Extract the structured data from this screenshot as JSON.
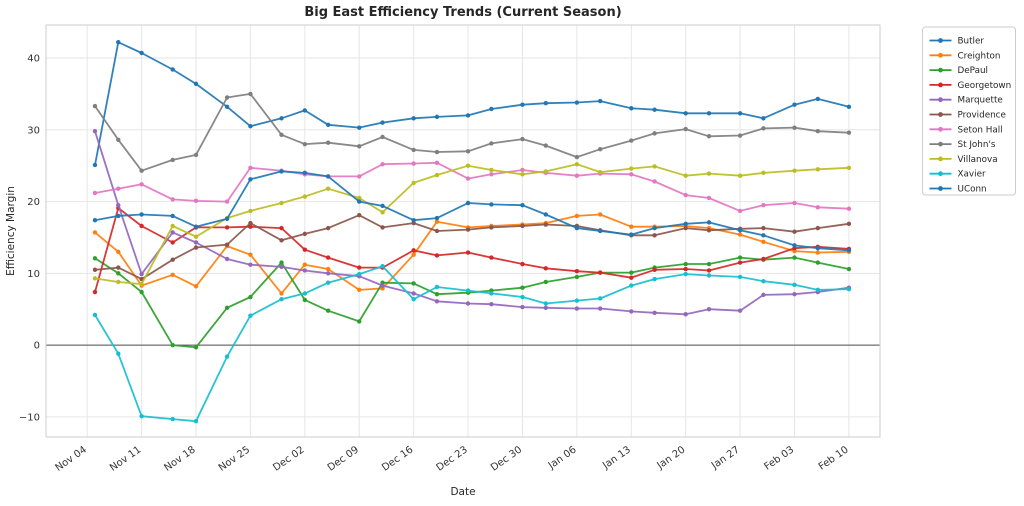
{
  "chart_data": {
    "type": "line",
    "title": "Big East Efficiency Trends (Current Season)",
    "xlabel": "Date",
    "ylabel": "Efficiency Margin",
    "grid": true,
    "legend_position": "outside-top-right",
    "zero_line_y": 0,
    "x_tick_labels": [
      "Nov 04",
      "Nov 11",
      "Nov 18",
      "Nov 25",
      "Dec 02",
      "Dec 09",
      "Dec 16",
      "Dec 23",
      "Dec 30",
      "Jan 06",
      "Jan 13",
      "Jan 20",
      "Jan 27",
      "Feb 03",
      "Feb 10"
    ],
    "x_tick_days": [
      0,
      7,
      14,
      21,
      28,
      35,
      42,
      49,
      56,
      63,
      70,
      77,
      84,
      91,
      98
    ],
    "y_ticks": [
      -10,
      0,
      10,
      20,
      30,
      40
    ],
    "y_tick_labels": [
      "−10",
      "0",
      "10",
      "20",
      "30",
      "40"
    ],
    "xlim_days": [
      -5.3,
      102
    ],
    "ylim": [
      -12.8,
      44.6
    ],
    "x_dates": [
      "Nov 05",
      "Nov 08",
      "Nov 11",
      "Nov 15",
      "Nov 18",
      "Nov 22",
      "Nov 25",
      "Nov 29",
      "Dec 02",
      "Dec 05",
      "Dec 09",
      "Dec 12",
      "Dec 16",
      "Dec 19",
      "Dec 23",
      "Dec 26",
      "Dec 30",
      "Jan 02",
      "Jan 06",
      "Jan 09",
      "Jan 13",
      "Jan 16",
      "Jan 20",
      "Jan 23",
      "Jan 27",
      "Jan 30",
      "Feb 03",
      "Feb 06",
      "Feb 10"
    ],
    "x_days": [
      1,
      4,
      7,
      11,
      14,
      18,
      21,
      25,
      28,
      31,
      35,
      38,
      42,
      45,
      49,
      52,
      56,
      59,
      63,
      66,
      70,
      73,
      77,
      80,
      84,
      87,
      91,
      94,
      98
    ],
    "series": [
      {
        "name": "Butler",
        "color": "#1f77b4",
        "values": [
          25.1,
          42.2,
          40.7,
          38.4,
          36.4,
          33.2,
          30.5,
          31.6,
          32.7,
          30.7,
          30.3,
          31.0,
          31.6,
          31.8,
          32.0,
          32.9,
          33.5,
          33.7,
          33.8,
          34.0,
          33.0,
          32.8,
          32.3,
          32.3,
          32.3,
          31.6,
          33.5,
          34.3,
          33.2
        ]
      },
      {
        "name": "Creighton",
        "color": "#ff7f0e",
        "values": [
          15.7,
          13.0,
          8.3,
          9.8,
          8.2,
          13.8,
          12.6,
          7.2,
          11.2,
          10.6,
          7.7,
          7.9,
          12.6,
          17.2,
          16.4,
          16.6,
          16.8,
          17.0,
          18.0,
          18.2,
          16.5,
          16.5,
          16.6,
          16.3,
          15.4,
          14.4,
          13.1,
          12.9,
          13.0
        ]
      },
      {
        "name": "DePaul",
        "color": "#2ca02c",
        "values": [
          12.1,
          10.0,
          7.4,
          0.0,
          -0.3,
          5.2,
          6.7,
          11.5,
          6.3,
          4.8,
          3.3,
          8.7,
          8.6,
          7.1,
          7.3,
          7.6,
          8.0,
          8.8,
          9.5,
          10.1,
          10.1,
          10.8,
          11.3,
          11.3,
          12.2,
          11.9,
          12.2,
          11.5,
          10.6
        ]
      },
      {
        "name": "Georgetown",
        "color": "#d62728",
        "values": [
          7.4,
          19.1,
          16.6,
          14.3,
          16.4,
          16.4,
          16.5,
          16.3,
          13.3,
          12.2,
          10.8,
          10.8,
          13.2,
          12.5,
          12.9,
          12.2,
          11.3,
          10.7,
          10.3,
          10.1,
          9.4,
          10.5,
          10.6,
          10.4,
          11.5,
          12.0,
          13.5,
          13.7,
          13.4
        ]
      },
      {
        "name": "Marquette",
        "color": "#9467bd",
        "values": [
          29.8,
          19.5,
          9.9,
          15.7,
          14.3,
          12.0,
          11.2,
          10.9,
          10.4,
          10.0,
          9.6,
          8.3,
          7.2,
          6.1,
          5.8,
          5.7,
          5.3,
          5.2,
          5.1,
          5.1,
          4.7,
          4.5,
          4.3,
          5.0,
          4.8,
          7.0,
          7.1,
          7.4,
          8.0
        ]
      },
      {
        "name": "Providence",
        "color": "#8c564b",
        "values": [
          10.5,
          10.8,
          9.2,
          11.9,
          13.6,
          14.0,
          17.0,
          14.6,
          15.5,
          16.3,
          18.1,
          16.4,
          17.0,
          15.9,
          16.1,
          16.4,
          16.6,
          16.8,
          16.6,
          16.0,
          15.3,
          15.3,
          16.3,
          16.0,
          16.2,
          16.3,
          15.8,
          16.3,
          16.9
        ]
      },
      {
        "name": "Seton Hall",
        "color": "#e377c2",
        "values": [
          21.2,
          21.8,
          22.4,
          20.3,
          20.1,
          20.0,
          24.7,
          24.3,
          23.8,
          23.5,
          23.5,
          25.2,
          25.3,
          25.4,
          23.2,
          23.8,
          24.4,
          24.0,
          23.6,
          23.9,
          23.8,
          22.8,
          20.9,
          20.5,
          18.7,
          19.5,
          19.8,
          19.2,
          19.0
        ]
      },
      {
        "name": "St John's",
        "color": "#7f7f7f",
        "values": [
          33.3,
          28.6,
          24.3,
          25.8,
          26.5,
          34.5,
          35.0,
          29.3,
          28.0,
          28.2,
          27.7,
          29.0,
          27.2,
          26.9,
          27.0,
          28.1,
          28.7,
          27.8,
          26.2,
          27.3,
          28.5,
          29.5,
          30.1,
          29.1,
          29.2,
          30.2,
          30.3,
          29.8,
          29.6
        ]
      },
      {
        "name": "Villanova",
        "color": "#bcbd22",
        "values": [
          9.3,
          8.8,
          8.5,
          16.6,
          15.1,
          17.7,
          18.7,
          19.8,
          20.7,
          21.8,
          20.5,
          18.5,
          22.6,
          23.7,
          25.0,
          24.4,
          23.8,
          24.2,
          25.2,
          24.1,
          24.6,
          24.9,
          23.6,
          23.9,
          23.6,
          24.0,
          24.3,
          24.5,
          24.7
        ]
      },
      {
        "name": "Xavier",
        "color": "#17becf",
        "values": [
          4.2,
          -1.2,
          -9.9,
          -10.3,
          -10.6,
          -1.6,
          4.1,
          6.4,
          7.2,
          8.7,
          9.9,
          11.0,
          6.4,
          8.1,
          7.6,
          7.2,
          6.7,
          5.8,
          6.2,
          6.5,
          8.3,
          9.2,
          9.9,
          9.7,
          9.5,
          8.9,
          8.4,
          7.7,
          7.8
        ]
      },
      {
        "name": "UConn",
        "color": "#1f77b4",
        "values": [
          17.4,
          18.0,
          18.2,
          18.0,
          16.5,
          17.6,
          23.1,
          24.2,
          24.0,
          23.5,
          20.0,
          19.4,
          17.4,
          17.7,
          19.8,
          19.6,
          19.5,
          18.2,
          16.3,
          15.9,
          15.4,
          16.3,
          16.9,
          17.1,
          16.0,
          15.3,
          13.9,
          13.5,
          13.2
        ]
      }
    ],
    "style": {
      "grid_color": "#e6e6e6",
      "spine_color": "#cccccc",
      "zero_line_color": "#4d4d4d",
      "legend_border_color": "#cccccc",
      "legend_bg": "#ffffff",
      "line_width": 1.8,
      "marker_radius": 2.2
    }
  }
}
